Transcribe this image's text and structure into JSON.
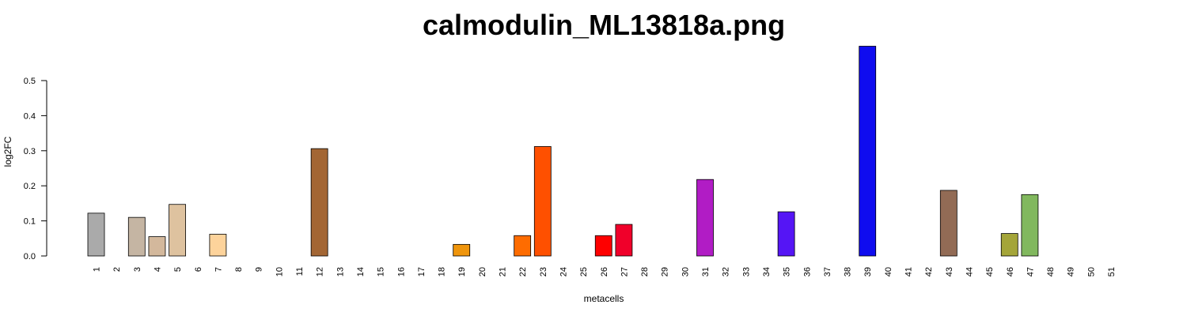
{
  "chart_data": {
    "type": "bar",
    "title": "calmodulin_ML13818a.png",
    "xlabel": "metacells",
    "ylabel": "log2FC",
    "ylim": [
      0,
      0.6
    ],
    "yticks": [
      "0.0",
      "0.1",
      "0.2",
      "0.3",
      "0.4",
      "0.5"
    ],
    "categories": [
      "1",
      "2",
      "3",
      "4",
      "5",
      "6",
      "7",
      "8",
      "9",
      "10",
      "11",
      "12",
      "13",
      "14",
      "15",
      "16",
      "17",
      "18",
      "19",
      "20",
      "21",
      "22",
      "23",
      "24",
      "25",
      "26",
      "27",
      "28",
      "29",
      "30",
      "31",
      "32",
      "33",
      "34",
      "35",
      "36",
      "37",
      "38",
      "39",
      "40",
      "41",
      "42",
      "43",
      "44",
      "45",
      "46",
      "47",
      "48",
      "49",
      "50",
      "51"
    ],
    "values": [
      0.122,
      0,
      0.11,
      0.055,
      0.147,
      0,
      0.062,
      0,
      0,
      0,
      0,
      0.306,
      0,
      0,
      0,
      0,
      0,
      0,
      0.033,
      0,
      0,
      0.058,
      0.312,
      0,
      0,
      0.058,
      0.09,
      0,
      0,
      0,
      0.218,
      0,
      0,
      0,
      0.126,
      0,
      0,
      0,
      0.598,
      0,
      0,
      0,
      0.187,
      0,
      0,
      0.064,
      0.175,
      0,
      0,
      0,
      0
    ],
    "colors": [
      "#AAAAAA",
      "#AAAAAA",
      "#C5B5A3",
      "#D3B89C",
      "#DEC29F",
      "#DEC29F",
      "#FDD39B",
      "#FDD39B",
      "#FDD39B",
      "#FDD39B",
      "#FDD39B",
      "#A36634",
      "#A36634",
      "#A36634",
      "#A36634",
      "#A36634",
      "#A36634",
      "#A36634",
      "#EF950C",
      "#EF950C",
      "#EF950C",
      "#FE6C00",
      "#FE5000",
      "#FE5000",
      "#FE5000",
      "#FE0000",
      "#F0002A",
      "#F0002A",
      "#F0002A",
      "#F0002A",
      "#B11CC5",
      "#B11CC5",
      "#B11CC5",
      "#B11CC5",
      "#5515F5",
      "#5515F5",
      "#5515F5",
      "#5515F5",
      "#0F0CEF",
      "#0F0CEF",
      "#0F0CEF",
      "#0F0CEF",
      "#926B55",
      "#926B55",
      "#926B55",
      "#A4A539",
      "#81B85E",
      "#81B85E",
      "#81B85E",
      "#81B85E",
      "#81B85E"
    ],
    "grid": false,
    "legend": "none"
  }
}
